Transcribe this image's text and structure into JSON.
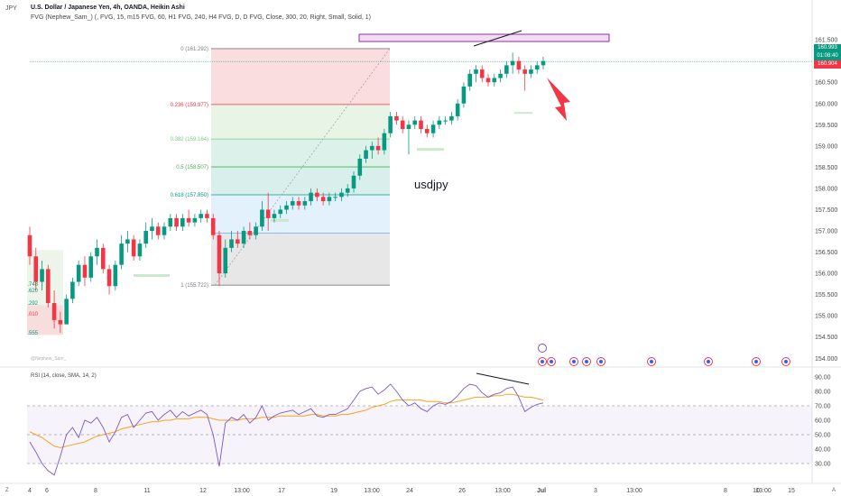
{
  "header": {
    "symbol": "JPY",
    "title": "U.S. Dollar / Japanese Yen, 4h, OANDA, Heikin Ashi",
    "indicator": "FVG (Nephew_Sam_) (, FVG, 15, m15 FVG, 60, H1 FVG, 240, H4 FVG, D, D FVG, Close, 300, 20, Right, Small, Solid, 1)"
  },
  "annotation_text": "usdjpy",
  "watermark": "@Nephew_Sam_",
  "price_tags": {
    "last": "160.993",
    "countdown": "01:08:40",
    "prev": "160.904"
  },
  "colors": {
    "up": "#089981",
    "down": "#f23645",
    "rsi": "#7e57c2",
    "sma": "#f7a21b",
    "highlight": "#9c27b0"
  },
  "chart_data": {
    "type": "candlestick",
    "price_axis": {
      "ticks": [
        "161.500",
        "161.000",
        "160.500",
        "160.000",
        "159.500",
        "159.000",
        "158.500",
        "158.000",
        "157.500",
        "157.000",
        "156.500",
        "156.000",
        "155.500",
        "155.000",
        "154.500",
        "154.000"
      ],
      "range": [
        153.9,
        161.8
      ]
    },
    "time_axis": [
      "4",
      "6",
      "8",
      "11",
      "12",
      "13:00",
      "17",
      "19",
      "13:00",
      "24",
      "26",
      "13:00",
      "Jul",
      "3",
      "13:00",
      "8",
      "10",
      "13:00",
      "15"
    ],
    "fibonacci": {
      "levels": [
        {
          "label": "0 (161.292)",
          "value": 161.292,
          "color": "#787b86"
        },
        {
          "label": "0.236 (159.977)",
          "value": 159.977,
          "color": "#f23645"
        },
        {
          "label": "0.382 (159.164)",
          "value": 159.164,
          "color": "#81c784"
        },
        {
          "label": "0.5 (158.507)",
          "value": 158.507,
          "color": "#4caf50"
        },
        {
          "label": "0.618 (157.850)",
          "value": 157.85,
          "color": "#089981"
        },
        {
          "label": "1 (155.722)",
          "value": 155.722,
          "color": "#787b86"
        }
      ],
      "left_labels": [
        ".748",
        ".620",
        ".292",
        ".010",
        ".555"
      ]
    },
    "candles": [
      [
        156.9,
        157.1,
        156.2,
        156.4
      ],
      [
        156.4,
        156.6,
        155.6,
        155.8
      ],
      [
        155.8,
        156.3,
        155.6,
        156.1
      ],
      [
        156.1,
        156.2,
        155.2,
        155.3
      ],
      [
        155.3,
        155.6,
        154.7,
        154.9
      ],
      [
        154.9,
        155.1,
        154.6,
        154.8
      ],
      [
        154.8,
        155.5,
        154.8,
        155.4
      ],
      [
        155.4,
        155.9,
        155.3,
        155.8
      ],
      [
        155.8,
        156.3,
        155.7,
        156.2
      ],
      [
        156.2,
        156.4,
        155.7,
        155.9
      ],
      [
        155.9,
        156.5,
        155.8,
        156.4
      ],
      [
        156.4,
        156.8,
        156.2,
        156.6
      ],
      [
        156.6,
        156.7,
        156.0,
        156.1
      ],
      [
        156.1,
        156.2,
        155.5,
        155.7
      ],
      [
        155.7,
        156.3,
        155.6,
        156.2
      ],
      [
        156.2,
        156.9,
        156.1,
        156.7
      ],
      [
        156.7,
        157.0,
        156.5,
        156.8
      ],
      [
        156.8,
        156.9,
        156.3,
        156.4
      ],
      [
        156.4,
        156.8,
        156.3,
        156.7
      ],
      [
        156.7,
        157.2,
        156.6,
        157.0
      ],
      [
        157.0,
        157.3,
        156.8,
        157.1
      ],
      [
        157.1,
        157.2,
        156.8,
        156.9
      ],
      [
        156.9,
        157.2,
        156.8,
        157.1
      ],
      [
        157.1,
        157.4,
        157.0,
        157.3
      ],
      [
        157.3,
        157.4,
        157.0,
        157.1
      ],
      [
        157.1,
        157.4,
        157.0,
        157.3
      ],
      [
        157.3,
        157.5,
        157.1,
        157.2
      ],
      [
        157.2,
        157.4,
        157.1,
        157.3
      ],
      [
        157.3,
        157.5,
        157.2,
        157.4
      ],
      [
        157.4,
        157.5,
        157.2,
        157.3
      ],
      [
        157.3,
        157.4,
        156.8,
        156.9
      ],
      [
        156.9,
        157.0,
        155.7,
        156.0
      ],
      [
        156.0,
        156.8,
        155.9,
        156.6
      ],
      [
        156.6,
        157.0,
        156.5,
        156.8
      ],
      [
        156.8,
        157.0,
        156.6,
        156.7
      ],
      [
        156.7,
        157.1,
        156.6,
        157.0
      ],
      [
        157.0,
        157.2,
        156.8,
        156.9
      ],
      [
        156.9,
        157.2,
        156.8,
        157.1
      ],
      [
        157.1,
        157.7,
        157.0,
        157.5
      ],
      [
        157.5,
        157.9,
        157.0,
        157.3
      ],
      [
        157.3,
        157.5,
        157.2,
        157.4
      ],
      [
        157.4,
        157.6,
        157.3,
        157.5
      ],
      [
        157.5,
        157.7,
        157.4,
        157.6
      ],
      [
        157.6,
        157.8,
        157.5,
        157.7
      ],
      [
        157.7,
        157.8,
        157.5,
        157.6
      ],
      [
        157.6,
        157.8,
        157.5,
        157.7
      ],
      [
        157.7,
        158.0,
        157.6,
        157.9
      ],
      [
        157.9,
        158.0,
        157.7,
        157.8
      ],
      [
        157.8,
        157.9,
        157.6,
        157.7
      ],
      [
        157.7,
        157.9,
        157.6,
        157.8
      ],
      [
        157.8,
        157.9,
        157.7,
        157.8
      ],
      [
        157.8,
        158.0,
        157.7,
        157.9
      ],
      [
        157.9,
        158.1,
        157.8,
        158.0
      ],
      [
        158.0,
        158.4,
        157.9,
        158.3
      ],
      [
        158.3,
        158.8,
        158.2,
        158.7
      ],
      [
        158.7,
        159.0,
        158.6,
        158.9
      ],
      [
        158.9,
        159.1,
        158.7,
        159.0
      ],
      [
        159.0,
        159.2,
        158.8,
        158.9
      ],
      [
        158.9,
        159.4,
        158.8,
        159.3
      ],
      [
        159.3,
        159.8,
        159.2,
        159.7
      ],
      [
        159.7,
        159.8,
        159.5,
        159.6
      ],
      [
        159.6,
        159.7,
        159.3,
        159.4
      ],
      [
        159.4,
        159.6,
        158.8,
        159.5
      ],
      [
        159.5,
        159.7,
        159.4,
        159.6
      ],
      [
        159.6,
        159.7,
        159.3,
        159.4
      ],
      [
        159.4,
        159.5,
        159.2,
        159.3
      ],
      [
        159.3,
        159.6,
        159.2,
        159.5
      ],
      [
        159.5,
        159.7,
        159.4,
        159.6
      ],
      [
        159.6,
        159.7,
        159.5,
        159.6
      ],
      [
        159.6,
        159.8,
        159.5,
        159.7
      ],
      [
        159.7,
        160.1,
        159.6,
        160.0
      ],
      [
        160.0,
        160.5,
        159.9,
        160.4
      ],
      [
        160.4,
        160.8,
        160.3,
        160.7
      ],
      [
        160.7,
        160.9,
        160.5,
        160.8
      ],
      [
        160.8,
        160.9,
        160.5,
        160.6
      ],
      [
        160.6,
        160.7,
        160.4,
        160.5
      ],
      [
        160.5,
        160.7,
        160.4,
        160.6
      ],
      [
        160.6,
        160.8,
        160.5,
        160.7
      ],
      [
        160.7,
        161.0,
        160.6,
        160.9
      ],
      [
        160.9,
        161.2,
        160.7,
        161.0
      ],
      [
        161.0,
        161.1,
        160.7,
        160.8
      ],
      [
        160.8,
        160.9,
        160.3,
        160.7
      ],
      [
        160.7,
        160.9,
        160.6,
        160.8
      ],
      [
        160.8,
        161.0,
        160.7,
        160.9
      ],
      [
        160.9,
        161.1,
        160.8,
        161.0
      ]
    ],
    "rsi": {
      "axis_ticks": [
        "90.00",
        "80.00",
        "70.00",
        "60.00",
        "50.00",
        "40.00",
        "30.00"
      ],
      "levels": [
        70,
        50,
        30
      ],
      "values": [
        45,
        38,
        30,
        25,
        22,
        35,
        50,
        55,
        48,
        60,
        58,
        62,
        55,
        45,
        52,
        62,
        64,
        55,
        60,
        65,
        66,
        60,
        64,
        67,
        62,
        66,
        63,
        65,
        67,
        64,
        50,
        28,
        58,
        62,
        60,
        64,
        58,
        62,
        70,
        60,
        63,
        65,
        66,
        67,
        64,
        66,
        68,
        63,
        62,
        64,
        64,
        66,
        68,
        74,
        80,
        82,
        83,
        78,
        81,
        85,
        80,
        74,
        70,
        72,
        68,
        66,
        70,
        72,
        71,
        73,
        77,
        82,
        85,
        84,
        79,
        76,
        78,
        79,
        82,
        83,
        76,
        66,
        69,
        71,
        72
      ],
      "sma": [
        52,
        50,
        48,
        45,
        42,
        41,
        42,
        43,
        44,
        45,
        47,
        49,
        50,
        51,
        52,
        54,
        55,
        56,
        57,
        58,
        59,
        59,
        60,
        60,
        61,
        61,
        61,
        62,
        62,
        62,
        61,
        60,
        60,
        60,
        60,
        61,
        61,
        61,
        62,
        62,
        62,
        63,
        63,
        63,
        63,
        63,
        64,
        64,
        63,
        63,
        63,
        64,
        64,
        65,
        66,
        67,
        69,
        70,
        71,
        73,
        74,
        74,
        74,
        74,
        74,
        73,
        73,
        73,
        72,
        72,
        73,
        74,
        75,
        76,
        76,
        76,
        77,
        77,
        78,
        78,
        77,
        76,
        76,
        75,
        74
      ]
    }
  }
}
